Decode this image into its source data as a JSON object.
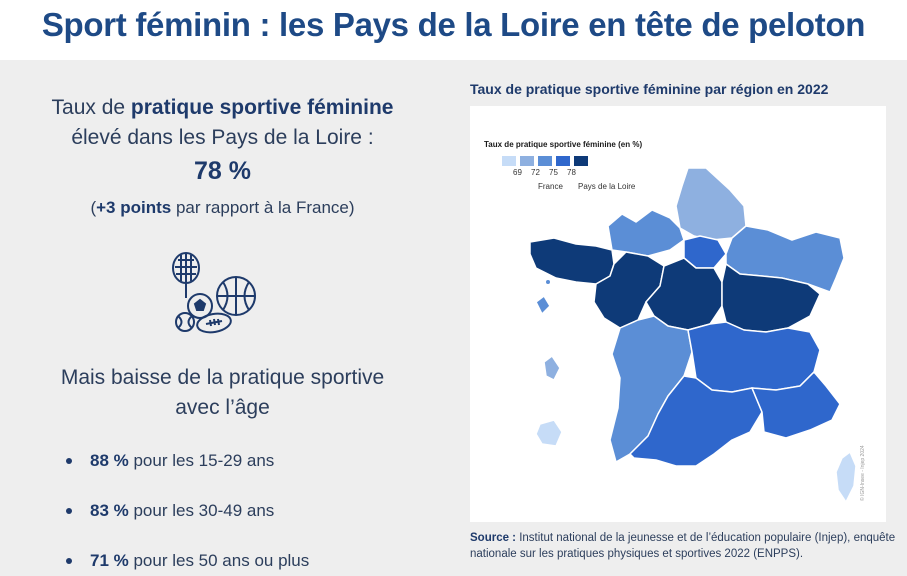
{
  "title": "Sport féminin : les Pays de la Loire en tête de peloton",
  "left": {
    "line1_pre": "Taux de ",
    "line1_bold": "pratique sportive féminine",
    "line2": "élevé dans les Pays de la Loire :",
    "big_value": "78 %",
    "line4_open": "(",
    "line4_bold": "+3 points",
    "line4_rest": " par rapport à la France)",
    "icon": "sports-balls-icon",
    "sub1": "Mais baisse de la pratique sportive",
    "sub2": "avec l’âge",
    "bullets": [
      {
        "value": "88 %",
        "text": " pour les 15-29 ans"
      },
      {
        "value": "83 %",
        "text": " pour les 30-49 ans"
      },
      {
        "value": "71 %",
        "text": " pour les 50 ans ou plus"
      }
    ]
  },
  "map": {
    "title": "Taux de pratique sportive féminine par région en 2022",
    "legend_title": "Taux de pratique sportive féminine (en %)",
    "legend_breaks": [
      "69",
      "72",
      "75",
      "78"
    ],
    "legend_colors": [
      "#c6dcf7",
      "#8eb0e0",
      "#5b8ed6",
      "#2f67cc",
      "#0e3a78"
    ],
    "legend_france": "France",
    "legend_pdl": "Pays de la Loire",
    "copyright": "© IGN-Insee - Injep 2024",
    "source_label": "Source :",
    "source_text": " Institut national de la jeunesse et de l’éducation populaire (Injep), enquête nationale sur les pratiques physiques et sportives 2022 (ENPPS)."
  }
}
